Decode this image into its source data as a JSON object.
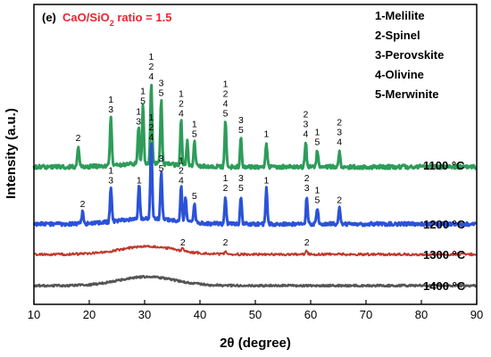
{
  "chart_data": {
    "type": "line",
    "panel_label": "(e)",
    "subtitle_prefix": "CaO/SiO",
    "subtitle_sub": "2",
    "subtitle_suffix": " ratio = 1.5",
    "xlabel": "2θ (degree)",
    "ylabel": "Intensity (a.u.)",
    "xlim": [
      10,
      90
    ],
    "xticks": [
      10,
      20,
      30,
      40,
      50,
      60,
      70,
      80,
      90
    ],
    "legend_entries": [
      "1-Melilite",
      "2-Spinel",
      "3-Perovskite",
      "4-Olivine",
      "5-Merwinite"
    ],
    "series": [
      {
        "name": "1100 °C",
        "color": "#2e9c5a",
        "peaks": [
          [
            18.0,
            0.25,
            "2"
          ],
          [
            23.9,
            0.6,
            "1\n3"
          ],
          [
            28.9,
            0.45,
            "1\n3"
          ],
          [
            29.7,
            0.7,
            "1\n5"
          ],
          [
            31.2,
            1.0,
            "1\n2\n4"
          ],
          [
            33.0,
            0.8,
            "3\n5"
          ],
          [
            36.6,
            0.55,
            "1\n2\n4"
          ],
          [
            37.7,
            0.3,
            ""
          ],
          [
            39.0,
            0.3,
            "1\n5"
          ],
          [
            44.6,
            0.55,
            "1\n2\n4\n5"
          ],
          [
            47.4,
            0.35,
            "3\n5"
          ],
          [
            52.0,
            0.3,
            "1"
          ],
          [
            59.1,
            0.3,
            "2\n3\n4"
          ],
          [
            61.2,
            0.2,
            "1\n5"
          ],
          [
            65.2,
            0.2,
            "2\n3\n4"
          ]
        ]
      },
      {
        "name": "1200 °C",
        "color": "#2b52d8",
        "peaks": [
          [
            18.8,
            0.15,
            "2"
          ],
          [
            23.9,
            0.45,
            "1\n3"
          ],
          [
            29.0,
            0.45,
            "1"
          ],
          [
            31.2,
            1.0,
            "1\n2\n4"
          ],
          [
            33.0,
            0.6,
            "3\n5"
          ],
          [
            36.6,
            0.45,
            "1\n2\n4"
          ],
          [
            37.4,
            0.3,
            ""
          ],
          [
            39.0,
            0.25,
            "5"
          ],
          [
            44.6,
            0.35,
            "1\n2"
          ],
          [
            47.4,
            0.35,
            "3\n5"
          ],
          [
            52.0,
            0.45,
            "1"
          ],
          [
            59.3,
            0.35,
            "2\n3"
          ],
          [
            61.2,
            0.2,
            "1\n5"
          ],
          [
            65.2,
            0.2,
            "2"
          ]
        ]
      },
      {
        "name": "1300 °C",
        "color": "#c0392b",
        "peaks": [
          [
            36.9,
            0.3,
            "2"
          ],
          [
            44.6,
            0.3,
            "2"
          ],
          [
            59.3,
            0.3,
            "2"
          ],
          [
            65.2,
            0.1,
            ""
          ]
        ]
      },
      {
        "name": "1400 °C",
        "color": "#555555",
        "peaks": []
      }
    ],
    "grid": false,
    "legend_placement": "top-right"
  }
}
